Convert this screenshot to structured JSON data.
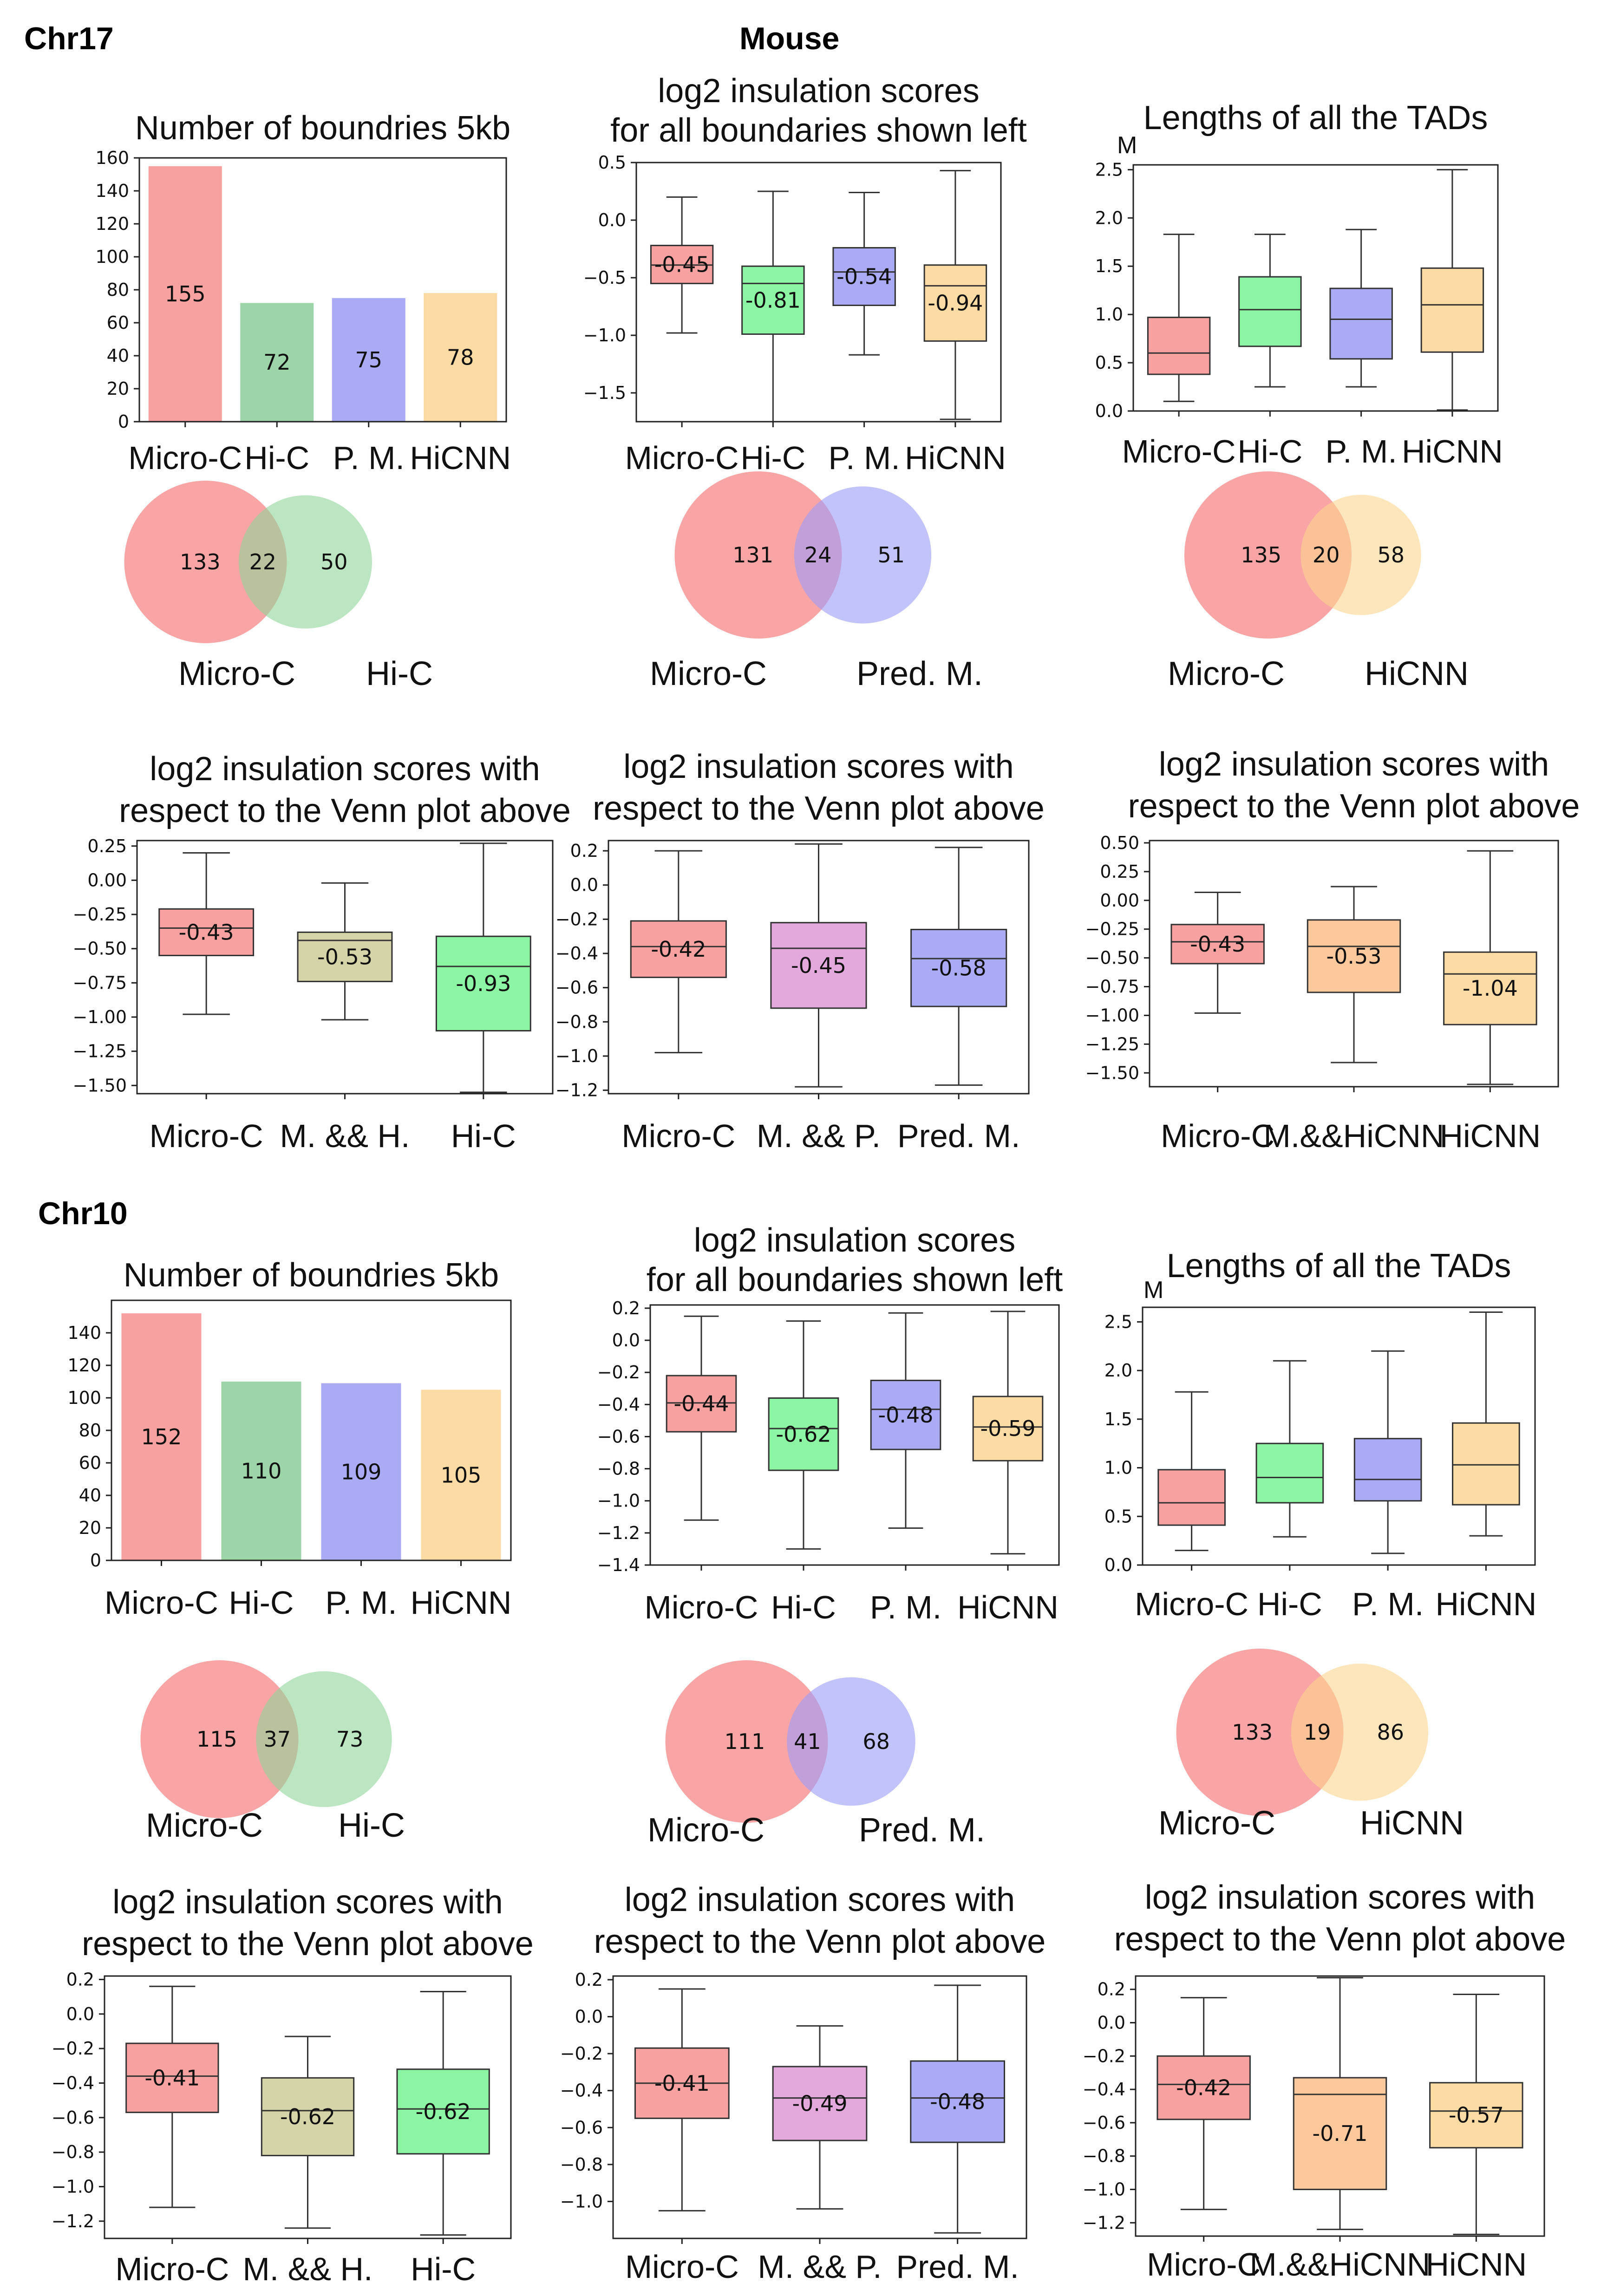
{
  "header": {
    "chr17": "Chr17",
    "mouse": "Mouse",
    "chr10": "Chr10"
  },
  "colors": {
    "micro_c": "#f8a1a1",
    "hi_c_bar": "#9dd4a8",
    "hi_c_box": "#8cf5a3",
    "pm": "#aaaaf5",
    "hicnn": "#fcdca4",
    "mh": "#d4d4a8",
    "mp": "#e3a8dc",
    "mhicnn": "#fcc89c",
    "venn_red": "#f67f7f",
    "venn_green": "#8fd39a",
    "venn_blue": "#9b9bfa",
    "venn_orange": "#fbd690"
  },
  "chart_data": [
    {
      "id": "c17_bar",
      "type": "bar",
      "title": [
        "Number of boundries 5kb"
      ],
      "categories": [
        "Micro-C",
        "Hi-C",
        "P. M.",
        "HiCNN"
      ],
      "values": [
        155,
        72,
        75,
        78
      ],
      "value_labels": [
        "155",
        "72",
        "75",
        "78"
      ],
      "ylim": [
        0,
        160
      ],
      "yticks": [
        0,
        20,
        40,
        60,
        80,
        100,
        120,
        140,
        160
      ],
      "colors": [
        "#f8a1a1",
        "#9dd4a8",
        "#aaaaf5",
        "#fcdca4"
      ]
    },
    {
      "id": "c17_box1",
      "type": "box",
      "title": [
        "log2 insulation scores",
        "for all boundaries shown left"
      ],
      "categories": [
        "Micro-C",
        "Hi-C",
        "P. M.",
        "HiCNN"
      ],
      "ylim": [
        -1.75,
        0.5
      ],
      "yticks": [
        -1.5,
        -1.0,
        -0.5,
        0.0,
        0.5
      ],
      "ytick_labels": [
        "−1.5",
        "−1.0",
        "−0.5",
        "0.0",
        "0.5"
      ],
      "boxes": [
        {
          "min": -0.98,
          "q1": -0.55,
          "median": -0.39,
          "q3": -0.22,
          "max": 0.2,
          "label": "-0.45",
          "color": "#f8a1a1"
        },
        {
          "min": -1.75,
          "q1": -0.99,
          "median": -0.55,
          "q3": -0.4,
          "max": 0.25,
          "label": "-0.81",
          "color": "#8cf5a3"
        },
        {
          "min": -1.17,
          "q1": -0.74,
          "median": -0.45,
          "q3": -0.24,
          "max": 0.24,
          "label": "-0.54",
          "color": "#aaaaf5"
        },
        {
          "min": -1.73,
          "q1": -1.05,
          "median": -0.57,
          "q3": -0.39,
          "max": 0.43,
          "label": "-0.94",
          "color": "#fcdca4"
        }
      ]
    },
    {
      "id": "c17_tad",
      "type": "box",
      "title": [
        "Lengths of all the TADs"
      ],
      "ylabel": "M",
      "categories": [
        "Micro-C",
        "Hi-C",
        "P. M.",
        "HiCNN"
      ],
      "ylim": [
        0,
        2.55
      ],
      "yticks": [
        0,
        0.5,
        1.0,
        1.5,
        2.0,
        2.5
      ],
      "ytick_labels": [
        "0.0",
        "0.5",
        "1.0",
        "1.5",
        "2.0",
        "2.5"
      ],
      "boxes": [
        {
          "min": 0.1,
          "q1": 0.38,
          "median": 0.6,
          "q3": 0.97,
          "max": 1.83,
          "color": "#f8a1a1"
        },
        {
          "min": 0.25,
          "q1": 0.67,
          "median": 1.05,
          "q3": 1.39,
          "max": 1.83,
          "color": "#8cf5a3"
        },
        {
          "min": 0.25,
          "q1": 0.54,
          "median": 0.95,
          "q3": 1.27,
          "max": 1.88,
          "color": "#aaaaf5"
        },
        {
          "min": 0.01,
          "q1": 0.61,
          "median": 1.1,
          "q3": 1.48,
          "max": 2.5,
          "color": "#fcdca4"
        }
      ]
    },
    {
      "id": "c17_v1",
      "type": "venn",
      "counts": [
        "133",
        "22",
        "50"
      ],
      "set_labels": [
        "Micro-C",
        "Hi-C"
      ],
      "colors": [
        "#f67f7f",
        "#8fd39a"
      ],
      "radii": [
        1.0,
        0.82
      ]
    },
    {
      "id": "c17_v2",
      "type": "venn",
      "counts": [
        "131",
        "24",
        "51"
      ],
      "set_labels": [
        "Micro-C",
        "Pred. M."
      ],
      "colors": [
        "#f67f7f",
        "#9b9bfa"
      ],
      "radii": [
        1.0,
        0.82
      ]
    },
    {
      "id": "c17_v3",
      "type": "venn",
      "counts": [
        "135",
        "20",
        "58"
      ],
      "set_labels": [
        "Micro-C",
        "HiCNN"
      ],
      "colors": [
        "#f67f7f",
        "#fbd690"
      ],
      "radii": [
        1.0,
        0.72
      ]
    },
    {
      "id": "c17_b1",
      "type": "box",
      "title": [
        "log2 insulation scores with",
        "respect to the Venn plot above"
      ],
      "categories": [
        "Micro-C",
        "M. && H.",
        "Hi-C"
      ],
      "ylim": [
        -1.56,
        0.29
      ],
      "yticks": [
        -1.5,
        -1.25,
        -1.0,
        -0.75,
        -0.5,
        -0.25,
        0.0,
        0.25
      ],
      "ytick_labels": [
        "−1.50",
        "−1.25",
        "−1.00",
        "−0.75",
        "−0.50",
        "−0.25",
        "0.00",
        "0.25"
      ],
      "boxes": [
        {
          "min": -0.98,
          "q1": -0.55,
          "median": -0.35,
          "q3": -0.21,
          "max": 0.2,
          "label": "-0.43",
          "color": "#f8a1a1"
        },
        {
          "min": -1.02,
          "q1": -0.74,
          "median": -0.44,
          "q3": -0.38,
          "max": -0.02,
          "label": "-0.53",
          "color": "#d4d4a8"
        },
        {
          "min": -1.55,
          "q1": -1.1,
          "median": -0.63,
          "q3": -0.41,
          "max": 0.27,
          "label": "-0.93",
          "color": "#8cf5a3"
        }
      ]
    },
    {
      "id": "c17_b2",
      "type": "box",
      "title": [
        "log2 insulation scores with",
        "respect to the Venn plot above"
      ],
      "categories": [
        "Micro-C",
        "M. && P.",
        "Pred. M."
      ],
      "ylim": [
        -1.22,
        0.26
      ],
      "yticks": [
        -1.2,
        -1.0,
        -0.8,
        -0.6,
        -0.4,
        -0.2,
        0.0,
        0.2
      ],
      "ytick_labels": [
        "−1.2",
        "−1.0",
        "−0.8",
        "−0.6",
        "−0.4",
        "−0.2",
        "0.0",
        "0.2"
      ],
      "boxes": [
        {
          "min": -0.98,
          "q1": -0.54,
          "median": -0.36,
          "q3": -0.21,
          "max": 0.2,
          "label": "-0.42",
          "color": "#f8a1a1"
        },
        {
          "min": -1.18,
          "q1": -0.72,
          "median": -0.37,
          "q3": -0.22,
          "max": 0.24,
          "label": "-0.45",
          "color": "#e3a8dc"
        },
        {
          "min": -1.17,
          "q1": -0.71,
          "median": -0.43,
          "q3": -0.26,
          "max": 0.22,
          "label": "-0.58",
          "color": "#aaaaf5"
        }
      ]
    },
    {
      "id": "c17_b3",
      "type": "box",
      "title": [
        "log2 insulation scores with",
        "respect to the Venn plot above"
      ],
      "categories": [
        "Micro-C",
        "M.&&HiCNN",
        "HiCNN"
      ],
      "ylim": [
        -1.62,
        0.52
      ],
      "yticks": [
        -1.5,
        -1.25,
        -1.0,
        -0.75,
        -0.5,
        -0.25,
        0.0,
        0.25,
        0.5
      ],
      "ytick_labels": [
        "−1.50",
        "−1.25",
        "−1.00",
        "−0.75",
        "−0.50",
        "−0.25",
        "0.00",
        "0.25",
        "0.50"
      ],
      "boxes": [
        {
          "min": -0.98,
          "q1": -0.55,
          "median": -0.36,
          "q3": -0.21,
          "max": 0.07,
          "label": "-0.43",
          "color": "#f8a1a1"
        },
        {
          "min": -1.41,
          "q1": -0.8,
          "median": -0.4,
          "q3": -0.17,
          "max": 0.12,
          "label": "-0.53",
          "color": "#fcc89c"
        },
        {
          "min": -1.6,
          "q1": -1.08,
          "median": -0.64,
          "q3": -0.45,
          "max": 0.43,
          "label": "-1.04",
          "color": "#fcdca4"
        }
      ]
    },
    {
      "id": "c10_bar",
      "type": "bar",
      "title": [
        "Number of boundries 5kb"
      ],
      "categories": [
        "Micro-C",
        "Hi-C",
        "P. M.",
        "HiCNN"
      ],
      "values": [
        152,
        110,
        109,
        105
      ],
      "value_labels": [
        "152",
        "110",
        "109",
        "105"
      ],
      "ylim": [
        0,
        160
      ],
      "yticks": [
        0,
        20,
        40,
        60,
        80,
        100,
        120,
        140
      ],
      "colors": [
        "#f8a1a1",
        "#9dd4a8",
        "#aaaaf5",
        "#fcdca4"
      ]
    },
    {
      "id": "c10_box1",
      "type": "box",
      "title": [
        "log2 insulation scores",
        "for all boundaries shown left"
      ],
      "categories": [
        "Micro-C",
        "Hi-C",
        "P. M.",
        "HiCNN"
      ],
      "ylim": [
        -1.4,
        0.22
      ],
      "yticks": [
        -1.4,
        -1.2,
        -1.0,
        -0.8,
        -0.6,
        -0.4,
        -0.2,
        0.0,
        0.2
      ],
      "ytick_labels": [
        "−1.4",
        "−1.2",
        "−1.0",
        "−0.8",
        "−0.6",
        "−0.4",
        "−0.2",
        "0.0",
        "0.2"
      ],
      "boxes": [
        {
          "min": -1.12,
          "q1": -0.57,
          "median": -0.39,
          "q3": -0.22,
          "max": 0.15,
          "label": "-0.44",
          "color": "#f8a1a1"
        },
        {
          "min": -1.3,
          "q1": -0.81,
          "median": -0.55,
          "q3": -0.36,
          "max": 0.12,
          "label": "-0.62",
          "color": "#8cf5a3"
        },
        {
          "min": -1.17,
          "q1": -0.68,
          "median": -0.43,
          "q3": -0.25,
          "max": 0.17,
          "label": "-0.48",
          "color": "#aaaaf5"
        },
        {
          "min": -1.33,
          "q1": -0.75,
          "median": -0.54,
          "q3": -0.35,
          "max": 0.18,
          "label": "-0.59",
          "color": "#fcdca4"
        }
      ]
    },
    {
      "id": "c10_tad",
      "type": "box",
      "title": [
        "Lengths of all the TADs"
      ],
      "ylabel": "M",
      "categories": [
        "Micro-C",
        "Hi-C",
        "P. M.",
        "HiCNN"
      ],
      "ylim": [
        0,
        2.65
      ],
      "yticks": [
        0,
        0.5,
        1.0,
        1.5,
        2.0,
        2.5
      ],
      "ytick_labels": [
        "0.0",
        "0.5",
        "1.0",
        "1.5",
        "2.0",
        "2.5"
      ],
      "boxes": [
        {
          "min": 0.15,
          "q1": 0.41,
          "median": 0.64,
          "q3": 0.98,
          "max": 1.78,
          "color": "#f8a1a1"
        },
        {
          "min": 0.29,
          "q1": 0.64,
          "median": 0.9,
          "q3": 1.25,
          "max": 2.1,
          "color": "#8cf5a3"
        },
        {
          "min": 0.12,
          "q1": 0.66,
          "median": 0.88,
          "q3": 1.3,
          "max": 2.2,
          "color": "#aaaaf5"
        },
        {
          "min": 0.3,
          "q1": 0.62,
          "median": 1.03,
          "q3": 1.46,
          "max": 2.6,
          "color": "#fcdca4"
        }
      ]
    },
    {
      "id": "c10_v1",
      "type": "venn",
      "counts": [
        "115",
        "37",
        "73"
      ],
      "set_labels": [
        "Micro-C",
        "Hi-C"
      ],
      "colors": [
        "#f67f7f",
        "#8fd39a"
      ],
      "radii": [
        1.0,
        0.86
      ]
    },
    {
      "id": "c10_v2",
      "type": "venn",
      "counts": [
        "111",
        "41",
        "68"
      ],
      "set_labels": [
        "Micro-C",
        "Pred. M."
      ],
      "colors": [
        "#f67f7f",
        "#9b9bfa"
      ],
      "radii": [
        1.0,
        0.79
      ]
    },
    {
      "id": "c10_v3",
      "type": "venn",
      "counts": [
        "133",
        "19",
        "86"
      ],
      "set_labels": [
        "Micro-C",
        "HiCNN"
      ],
      "colors": [
        "#f67f7f",
        "#fbd690"
      ],
      "radii": [
        1.0,
        0.82
      ]
    },
    {
      "id": "c10_b1",
      "type": "box",
      "title": [
        "log2 insulation scores with",
        "respect to the Venn plot above"
      ],
      "categories": [
        "Micro-C",
        "M. && H.",
        "Hi-C"
      ],
      "ylim": [
        -1.3,
        0.22
      ],
      "yticks": [
        -1.2,
        -1.0,
        -0.8,
        -0.6,
        -0.4,
        -0.2,
        0.0,
        0.2
      ],
      "ytick_labels": [
        "−1.2",
        "−1.0",
        "−0.8",
        "−0.6",
        "−0.4",
        "−0.2",
        "0.0",
        "0.2"
      ],
      "boxes": [
        {
          "min": -1.12,
          "q1": -0.57,
          "median": -0.36,
          "q3": -0.17,
          "max": 0.16,
          "label": "-0.41",
          "color": "#f8a1a1"
        },
        {
          "min": -1.24,
          "q1": -0.82,
          "median": -0.56,
          "q3": -0.37,
          "max": -0.13,
          "label": "-0.62",
          "color": "#d4d4a8"
        },
        {
          "min": -1.28,
          "q1": -0.81,
          "median": -0.55,
          "q3": -0.32,
          "max": 0.13,
          "label": "-0.62",
          "color": "#8cf5a3"
        }
      ]
    },
    {
      "id": "c10_b2",
      "type": "box",
      "title": [
        "log2 insulation scores with",
        "respect to the Venn plot above"
      ],
      "categories": [
        "Micro-C",
        "M. && P.",
        "Pred. M."
      ],
      "ylim": [
        -1.2,
        0.22
      ],
      "yticks": [
        -1.0,
        -0.8,
        -0.6,
        -0.4,
        -0.2,
        0.0,
        0.2
      ],
      "ytick_labels": [
        "−1.0",
        "−0.8",
        "−0.6",
        "−0.4",
        "−0.2",
        "0.0",
        "0.2"
      ],
      "boxes": [
        {
          "min": -1.05,
          "q1": -0.55,
          "median": -0.36,
          "q3": -0.17,
          "max": 0.15,
          "label": "-0.41",
          "color": "#f8a1a1"
        },
        {
          "min": -1.04,
          "q1": -0.67,
          "median": -0.44,
          "q3": -0.27,
          "max": -0.05,
          "label": "-0.49",
          "color": "#e3a8dc"
        },
        {
          "min": -1.17,
          "q1": -0.68,
          "median": -0.44,
          "q3": -0.24,
          "max": 0.17,
          "label": "-0.48",
          "color": "#aaaaf5"
        }
      ]
    },
    {
      "id": "c10_b3",
      "type": "box",
      "title": [
        "log2 insulation scores with",
        "respect to the Venn plot above"
      ],
      "categories": [
        "Micro-C",
        "M.&&HiCNN",
        "HiCNN"
      ],
      "ylim": [
        -1.28,
        0.28
      ],
      "yticks": [
        -1.2,
        -1.0,
        -0.8,
        -0.6,
        -0.4,
        -0.2,
        0.0,
        0.2
      ],
      "ytick_labels": [
        "−1.2",
        "−1.0",
        "−0.8",
        "−0.6",
        "−0.4",
        "−0.2",
        "0.0",
        "0.2"
      ],
      "boxes": [
        {
          "min": -1.12,
          "q1": -0.58,
          "median": -0.37,
          "q3": -0.2,
          "max": 0.15,
          "label": "-0.42",
          "color": "#f8a1a1"
        },
        {
          "min": -1.24,
          "q1": -1.0,
          "median": -0.43,
          "q3": -0.33,
          "max": 0.27,
          "label": "-0.71",
          "color": "#fcc89c"
        },
        {
          "min": -1.27,
          "q1": -0.75,
          "median": -0.53,
          "q3": -0.36,
          "max": 0.17,
          "label": "-0.57",
          "color": "#fcdca4"
        }
      ]
    }
  ]
}
